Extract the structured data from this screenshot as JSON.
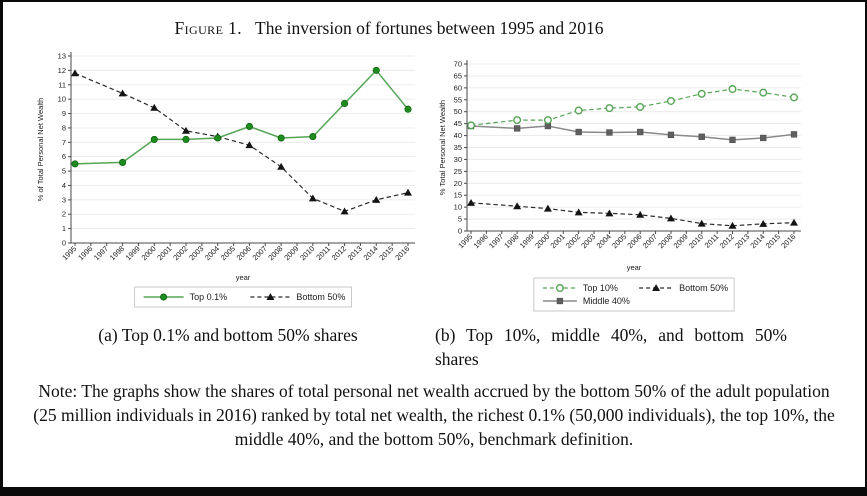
{
  "figure": {
    "label": "Figure 1.",
    "title": "The inversion of fortunes between 1995 and 2016",
    "caption_a": "(a) Top 0.1% and bottom 50% shares",
    "caption_b": "(b) Top 10%, middle 40%, and bottom 50% shares",
    "note": "Note: The graphs show the shares of total personal net wealth accrued by the bottom 50% of the adult population (25 million individuals in 2016) ranked by total net wealth, the richest 0.1% (50,000 individuals), the top 10%, the middle 40%, and the bottom 50%, benchmark definition."
  },
  "colors": {
    "green_line": "#55a555",
    "green_marker": "#1e8b1e",
    "green_marker_edge": "#0d5f0d",
    "gray_line": "#8a8a8a",
    "gray_marker": "#5f5f5f",
    "gray_marker_edge": "#474747",
    "black_line": "#2b2b2b",
    "black_marker": "#141414",
    "grid": "#e9e9e9",
    "axis": "#4a4a4a",
    "text": "#1c1c1c",
    "legend_border": "#bdbdbd"
  },
  "chart_data": [
    {
      "id": "a",
      "type": "line",
      "title": "",
      "xlabel": "year",
      "ylabel": "% of Total Personal Net Wealth",
      "ylim": [
        0,
        13
      ],
      "ytick_step": 1,
      "grid": true,
      "legend_position": "bottom",
      "x_ticks": [
        1995,
        1996,
        1997,
        1998,
        1999,
        2000,
        2001,
        2002,
        2003,
        2004,
        2005,
        2006,
        2007,
        2008,
        2009,
        2010,
        2011,
        2012,
        2013,
        2014,
        2015,
        2016
      ],
      "x": [
        1995,
        1998,
        2000,
        2002,
        2004,
        2006,
        2008,
        2010,
        2012,
        2014,
        2016
      ],
      "series": [
        {
          "name": "Bottom 50%",
          "values": [
            11.8,
            10.4,
            9.4,
            7.8,
            7.4,
            6.8,
            5.3,
            3.1,
            2.2,
            3.0,
            3.5
          ],
          "line": "dashed",
          "marker": "triangle",
          "stroke": "#2b2b2b",
          "marker_fill": "#141414",
          "marker_edge": "#141414"
        },
        {
          "name": "Top 0.1%",
          "values": [
            5.5,
            5.6,
            7.2,
            7.2,
            7.3,
            8.1,
            7.3,
            7.4,
            9.7,
            12.0,
            9.3
          ],
          "line": "solid",
          "marker": "circle",
          "stroke": "#55a555",
          "marker_fill": "#1e8b1e",
          "marker_edge": "#0d5f0d"
        }
      ],
      "legend": {
        "rows": [
          [
            "Top 0.1%",
            "Bottom 50%"
          ]
        ]
      }
    },
    {
      "id": "b",
      "type": "line",
      "title": "",
      "xlabel": "year",
      "ylabel": "% Total Personal Net Wealth",
      "ylim": [
        0,
        70
      ],
      "ytick_step": 5,
      "grid": true,
      "legend_position": "bottom",
      "x_ticks": [
        1995,
        1996,
        1997,
        1998,
        1999,
        2000,
        2001,
        2002,
        2003,
        2004,
        2005,
        2006,
        2007,
        2008,
        2009,
        2010,
        2011,
        2012,
        2013,
        2014,
        2015,
        2016
      ],
      "x": [
        1995,
        1998,
        2000,
        2002,
        2004,
        2006,
        2008,
        2010,
        2012,
        2014,
        2016
      ],
      "series": [
        {
          "name": "Middle 40%",
          "values": [
            44.0,
            43.0,
            44.0,
            41.5,
            41.3,
            41.5,
            40.3,
            39.5,
            38.2,
            39.0,
            40.5
          ],
          "line": "solid",
          "marker": "square",
          "stroke": "#8a8a8a",
          "marker_fill": "#5f5f5f",
          "marker_edge": "#474747"
        },
        {
          "name": "Bottom 50%",
          "values": [
            11.8,
            10.4,
            9.4,
            7.8,
            7.4,
            6.8,
            5.3,
            3.1,
            2.2,
            3.0,
            3.5
          ],
          "line": "dashed",
          "marker": "triangle",
          "stroke": "#2b2b2b",
          "marker_fill": "#141414",
          "marker_edge": "#141414"
        },
        {
          "name": "Top 10%",
          "values": [
            44.3,
            46.5,
            46.5,
            50.5,
            51.5,
            52.0,
            54.5,
            57.5,
            59.5,
            58.0,
            56.0
          ],
          "line": "dashed",
          "marker": "circle-open",
          "stroke": "#55a555",
          "marker_fill": "#55a555",
          "marker_edge": "#0d5f0d"
        }
      ],
      "legend": {
        "rows": [
          [
            "Top 10%",
            "Bottom 50%"
          ],
          [
            "Middle 40%"
          ]
        ]
      }
    }
  ]
}
